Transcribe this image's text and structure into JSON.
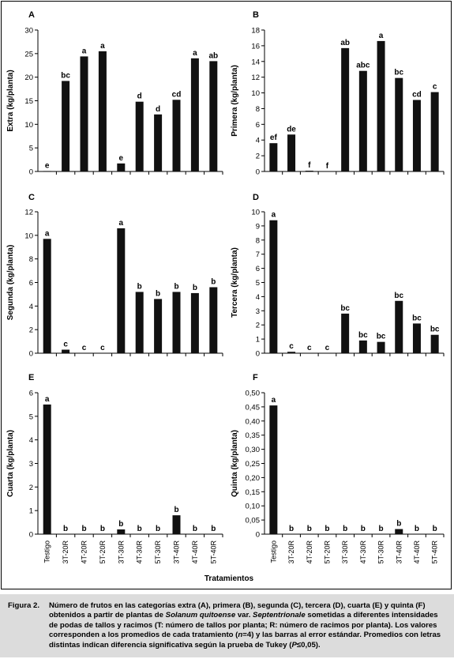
{
  "figure": {
    "caption_label": "Figura 2.",
    "caption_parts": [
      {
        "text": "Número de frutos en las categorías extra (A), primera (B), segunda (C), tercera (D), cuarta (E) y quinta (F) obtenidos a partir de plantas de ",
        "italic": false
      },
      {
        "text": "Solanum quitoense",
        "italic": true
      },
      {
        "text": " var. ",
        "italic": false
      },
      {
        "text": "Septentrionale",
        "italic": true
      },
      {
        "text": " sometidas a diferentes intensidades de podas de tallos y racimos (T: número de tallos por planta; R: número de racimos por planta). Los valores corresponden a los promedios de cada tratamiento (",
        "italic": false
      },
      {
        "text": "n",
        "italic": true
      },
      {
        "text": "=4) y las barras al error estándar. Promedios con letras distintas indican diferencia significativa según la prueba de Tukey (",
        "italic": false
      },
      {
        "text": "P",
        "italic": true
      },
      {
        "text": "≤0,05).",
        "italic": false
      }
    ],
    "shared_xlabel": "Tratamientos"
  },
  "chart_data": [
    {
      "type": "bar",
      "panel": "A",
      "ylabel": "Extra (kg/planta)",
      "categories": [
        "Testigo",
        "3T-20R",
        "4T-20R",
        "5T-20R",
        "3T-30R",
        "4T-30R",
        "5T-30R",
        "3T-40R",
        "4T-40R",
        "5T-40R"
      ],
      "values": [
        0.1,
        19.2,
        24.4,
        25.5,
        1.7,
        14.8,
        12.1,
        15.2,
        24.0,
        23.4
      ],
      "letters": [
        "e",
        "bc",
        "a",
        "a",
        "e",
        "d",
        "d",
        "cd",
        "a",
        "ab"
      ],
      "ylim": [
        0,
        30
      ],
      "yticks": [
        "0",
        "5",
        "10",
        "15",
        "20",
        "25",
        "30"
      ],
      "show_xticks": false,
      "bar_color": "#111111"
    },
    {
      "type": "bar",
      "panel": "B",
      "ylabel": "Primera (kg/planta)",
      "categories": [
        "Testigo",
        "3T-20R",
        "4T-20R",
        "5T-20R",
        "3T-30R",
        "4T-30R",
        "5T-30R",
        "3T-40R",
        "4T-40R",
        "5T-40R"
      ],
      "values": [
        3.6,
        4.7,
        0.1,
        0.0,
        15.7,
        12.8,
        16.6,
        11.9,
        9.1,
        10.1
      ],
      "letters": [
        "ef",
        "de",
        "f",
        "f",
        "ab",
        "abc",
        "a",
        "bc",
        "cd",
        "c"
      ],
      "ylim": [
        0,
        18
      ],
      "yticks": [
        "0",
        "2",
        "4",
        "6",
        "8",
        "10",
        "12",
        "14",
        "16",
        "18"
      ],
      "show_xticks": false,
      "bar_color": "#111111"
    },
    {
      "type": "bar",
      "panel": "C",
      "ylabel": "Segunda (kg/planta)",
      "categories": [
        "Testigo",
        "3T-20R",
        "4T-20R",
        "5T-20R",
        "3T-30R",
        "4T-30R",
        "5T-30R",
        "3T-40R",
        "4T-40R",
        "5T-40R"
      ],
      "values": [
        9.7,
        0.3,
        0.0,
        0.0,
        10.6,
        5.2,
        4.6,
        5.2,
        5.1,
        5.6
      ],
      "letters": [
        "a",
        "c",
        "c",
        "c",
        "a",
        "b",
        "b",
        "b",
        "b",
        "b"
      ],
      "ylim": [
        0,
        12
      ],
      "yticks": [
        "0",
        "2",
        "4",
        "6",
        "8",
        "10",
        "12"
      ],
      "show_xticks": false,
      "bar_color": "#111111"
    },
    {
      "type": "bar",
      "panel": "D",
      "ylabel": "Tercera (kg/planta)",
      "categories": [
        "Testigo",
        "3T-20R",
        "4T-20R",
        "5T-20R",
        "3T-30R",
        "4T-30R",
        "5T-30R",
        "3T-40R",
        "4T-40R",
        "5T-40R"
      ],
      "values": [
        9.4,
        0.1,
        0.0,
        0.0,
        2.8,
        0.9,
        0.8,
        3.7,
        2.1,
        1.3
      ],
      "letters": [
        "a",
        "c",
        "c",
        "c",
        "bc",
        "bc",
        "bc",
        "bc",
        "bc",
        "bc"
      ],
      "ylim": [
        0,
        10
      ],
      "yticks": [
        "0",
        "1",
        "2",
        "3",
        "4",
        "5",
        "6",
        "7",
        "8",
        "9",
        "10"
      ],
      "show_xticks": false,
      "bar_color": "#111111"
    },
    {
      "type": "bar",
      "panel": "E",
      "ylabel": "Cuarta (kg/planta)",
      "categories": [
        "Testigo",
        "3T-20R",
        "4T-20R",
        "5T-20R",
        "3T-30R",
        "4T-30R",
        "5T-30R",
        "3T-40R",
        "4T-40R",
        "5T-40R"
      ],
      "values": [
        5.5,
        0.0,
        0.0,
        0.0,
        0.2,
        0.0,
        0.0,
        0.8,
        0.0,
        0.0
      ],
      "letters": [
        "a",
        "b",
        "b",
        "b",
        "b",
        "b",
        "b",
        "b",
        "b",
        "b"
      ],
      "ylim": [
        0,
        6
      ],
      "yticks": [
        "0",
        "1",
        "2",
        "3",
        "4",
        "5",
        "6"
      ],
      "show_xticks": true,
      "bar_color": "#111111"
    },
    {
      "type": "bar",
      "panel": "F",
      "ylabel": "Quinta (kg/planta)",
      "categories": [
        "Testigo",
        "3T-20R",
        "4T-20R",
        "5T-20R",
        "3T-30R",
        "4T-30R",
        "5T-30R",
        "3T-40R",
        "4T-40R",
        "5T-40R"
      ],
      "values": [
        0.455,
        0.0,
        0.0,
        0.0,
        0.0,
        0.0,
        0.0,
        0.018,
        0.0,
        0.0
      ],
      "letters": [
        "a",
        "b",
        "b",
        "b",
        "b",
        "b",
        "b",
        "b",
        "b",
        "b"
      ],
      "ylim": [
        0,
        0.5
      ],
      "yticks": [
        "0",
        "0,05",
        "0,10",
        "0,15",
        "0,20",
        "0,25",
        "0,30",
        "0,35",
        "0,40",
        "0,45",
        "0,50"
      ],
      "show_xticks": true,
      "bar_color": "#111111"
    }
  ]
}
